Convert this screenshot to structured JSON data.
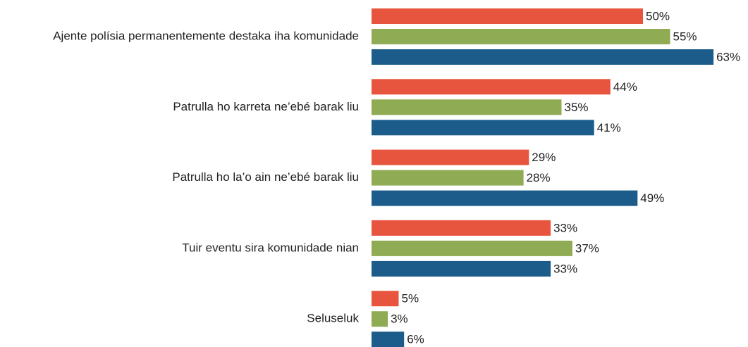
{
  "chart_data": {
    "type": "hbar",
    "categories": [
      "Ajente polísia permanentemente destaka iha komunidade",
      "Patrulla ho karreta ne’ebé barak liu",
      "Patrulla ho la’o ain ne’ebé barak liu",
      "Tuir eventu sira komunidade nian",
      "Seluseluk"
    ],
    "series": [
      {
        "color": "#e8553e",
        "values": [
          50,
          44,
          29,
          33,
          5
        ],
        "value_labels": [
          "50%",
          "44%",
          "29%",
          "33%",
          "5%"
        ]
      },
      {
        "color": "#8fab53",
        "values": [
          55,
          35,
          28,
          37,
          3
        ],
        "value_labels": [
          "55%",
          "35%",
          "28%",
          "37%",
          "3%"
        ]
      },
      {
        "color": "#1b5c8a",
        "values": [
          63,
          41,
          49,
          33,
          6
        ],
        "value_labels": [
          "63%",
          "41%",
          "49%",
          "33%",
          "6%"
        ]
      }
    ]
  }
}
